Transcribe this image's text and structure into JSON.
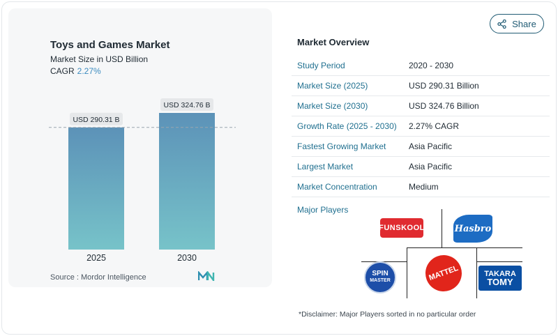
{
  "header": {
    "share_label": "Share",
    "share_icon": "share-icon"
  },
  "chart_data": {
    "type": "bar",
    "title": "Toys and Games Market",
    "subtitle": "Market Size in USD Billion",
    "cagr_label": "CAGR",
    "cagr_value": "2.27%",
    "categories": [
      "2025",
      "2030"
    ],
    "values": [
      290.31,
      324.76
    ],
    "data_labels": [
      "USD 290.31 B",
      "USD 324.76 B"
    ],
    "ylim": [
      0,
      324.76
    ],
    "grid": false,
    "reference_line": "dashed at 2025 value",
    "colors": {
      "bar_top": "#5c92b8",
      "bar_bottom": "#77c3c9"
    }
  },
  "source": {
    "text": "Source :  Mordor Intelligence",
    "logo_icon": "mordor-intelligence-logo"
  },
  "overview": {
    "title": "Market Overview",
    "rows": [
      {
        "key": "Study Period",
        "value": "2020 - 2030"
      },
      {
        "key": "Market Size (2025)",
        "value": "USD 290.31 Billion"
      },
      {
        "key": "Market Size (2030)",
        "value": "USD 324.76 Billion"
      },
      {
        "key": "Growth Rate (2025 - 2030)",
        "value": "2.27% CAGR"
      },
      {
        "key": "Fastest Growing Market",
        "value": "Asia Pacific"
      },
      {
        "key": "Largest Market",
        "value": "Asia Pacific"
      },
      {
        "key": "Market Concentration",
        "value": "Medium"
      }
    ]
  },
  "players": {
    "label": "Major Players",
    "logos": {
      "funskool": "FUNSKOOL",
      "hasbro": "Hasbro",
      "spin_master_1": "SPIN",
      "spin_master_2": "MASTER",
      "mattel": "MATTEL",
      "takara_1": "TAKARA",
      "takara_2": "TOMY"
    }
  },
  "disclaimer": "*Disclaimer: Major Players sorted in no particular order"
}
